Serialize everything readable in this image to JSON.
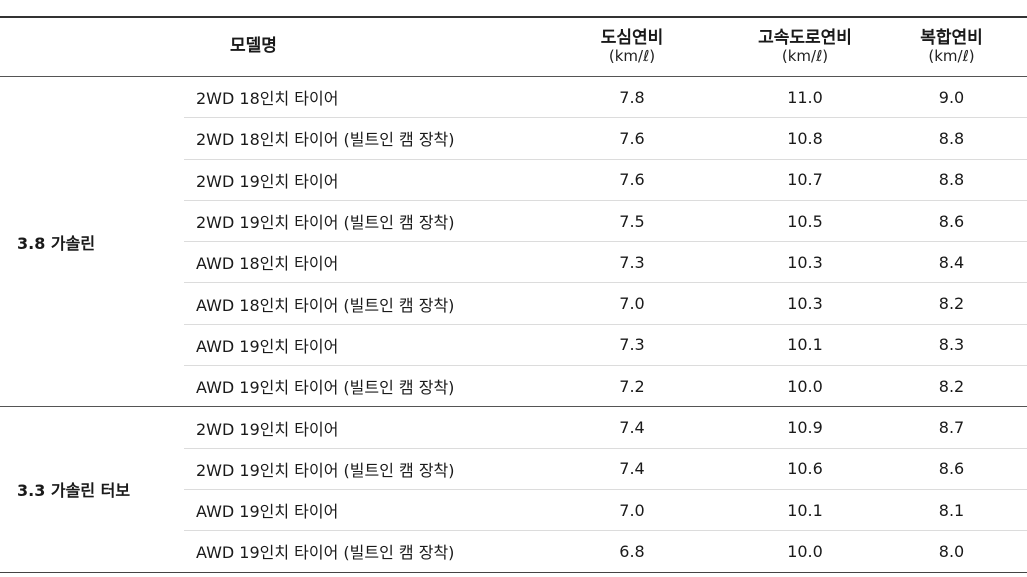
{
  "header": {
    "model": "모델명",
    "city": "도심연비",
    "highway": "고속도로연비",
    "combined": "복합연비",
    "unit": "(km/ℓ)"
  },
  "groups": [
    {
      "name": "3.8 가솔린",
      "rows": [
        {
          "model": "2WD 18인치 타이어",
          "city": "7.8",
          "highway": "11.0",
          "combined": "9.0"
        },
        {
          "model": "2WD 18인치 타이어 (빌트인 캠 장착)",
          "city": "7.6",
          "highway": "10.8",
          "combined": "8.8"
        },
        {
          "model": "2WD 19인치 타이어",
          "city": "7.6",
          "highway": "10.7",
          "combined": "8.8"
        },
        {
          "model": "2WD 19인치 타이어 (빌트인 캠 장착)",
          "city": "7.5",
          "highway": "10.5",
          "combined": "8.6"
        },
        {
          "model": "AWD 18인치 타이어",
          "city": "7.3",
          "highway": "10.3",
          "combined": "8.4"
        },
        {
          "model": "AWD 18인치 타이어 (빌트인 캠 장착)",
          "city": "7.0",
          "highway": "10.3",
          "combined": "8.2"
        },
        {
          "model": "AWD 19인치 타이어",
          "city": "7.3",
          "highway": "10.1",
          "combined": "8.3"
        },
        {
          "model": "AWD 19인치 타이어 (빌트인 캠 장착)",
          "city": "7.2",
          "highway": "10.0",
          "combined": "8.2"
        }
      ]
    },
    {
      "name": "3.3 가솔린 터보",
      "rows": [
        {
          "model": "2WD 19인치 타이어",
          "city": "7.4",
          "highway": "10.9",
          "combined": "8.7"
        },
        {
          "model": "2WD 19인치 타이어 (빌트인 캠 장착)",
          "city": "7.4",
          "highway": "10.6",
          "combined": "8.6"
        },
        {
          "model": "AWD 19인치 타이어",
          "city": "7.0",
          "highway": "10.1",
          "combined": "8.1"
        },
        {
          "model": "AWD 19인치 타이어 (빌트인 캠 장착)",
          "city": "6.8",
          "highway": "10.0",
          "combined": "8.0"
        }
      ]
    }
  ]
}
